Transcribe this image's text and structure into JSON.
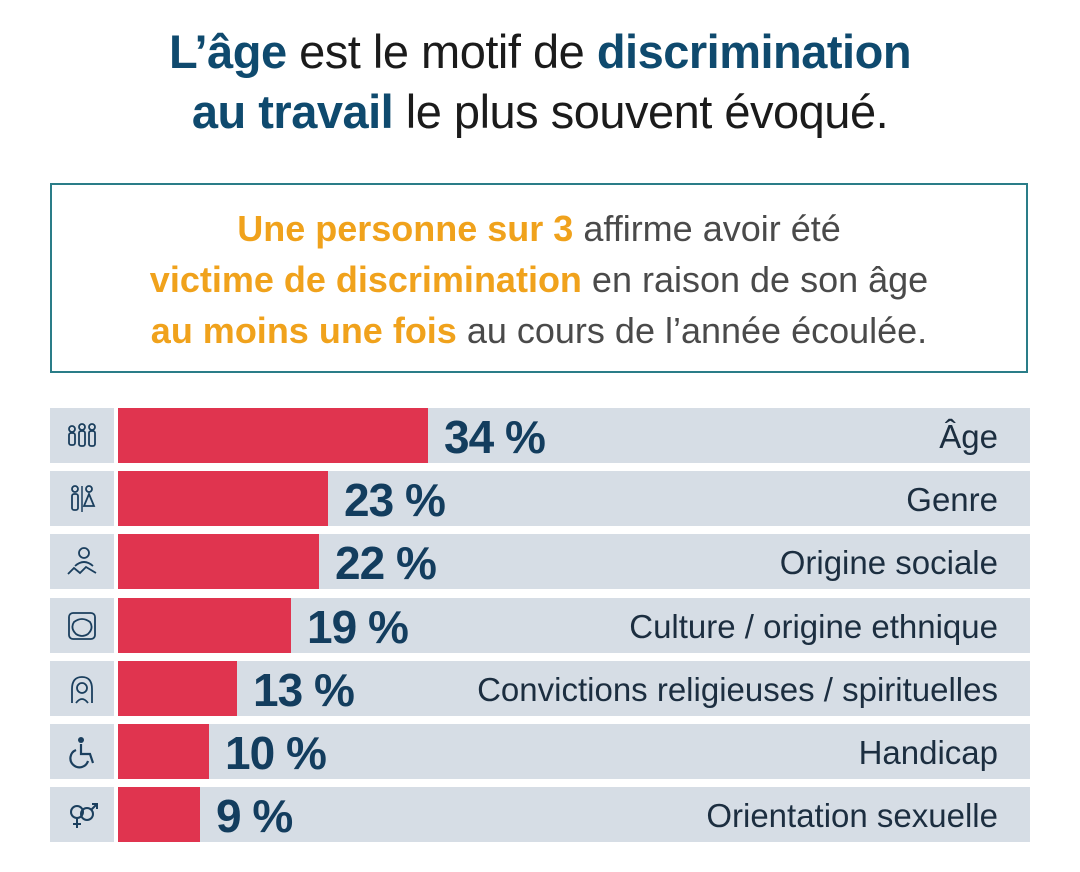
{
  "headline": {
    "part1": "L’âge",
    "part2": " est le motif de ",
    "part3": "discrimination",
    "part4": "au travail",
    "part5": " le plus souvent évoqué."
  },
  "callout": {
    "l1a": "Une personne sur 3",
    "l1b": " affirme avoir été",
    "l2a": "victime de discrimination",
    "l2b": " en raison de son âge",
    "l3a": "au moins une fois",
    "l3b": " au cours de l’année écoulée."
  },
  "colors": {
    "headline_accent": "#0f4a6e",
    "callout_accent": "#f0a21c",
    "bar": "#e0344f",
    "track": "#d6dde5",
    "callout_border": "#2a7d88"
  },
  "chart_data": {
    "type": "bar",
    "orientation": "horizontal",
    "categories": [
      "Âge",
      "Genre",
      "Origine sociale",
      "Culture / origine ethnique",
      "Convictions religieuses / spirituelles",
      "Handicap",
      "Orientation sexuelle"
    ],
    "values": [
      34,
      23,
      22,
      19,
      13,
      10,
      9
    ],
    "value_labels": [
      "34 %",
      "23 %",
      "22 %",
      "19 %",
      "13 %",
      "10 %",
      "9 %"
    ],
    "icons": [
      "family-icon",
      "gender-icon",
      "social-origin-icon",
      "culture-hands-icon",
      "religion-icon",
      "wheelchair-icon",
      "sexual-orientation-icon"
    ],
    "xlim": [
      0,
      100
    ],
    "grid": false
  }
}
